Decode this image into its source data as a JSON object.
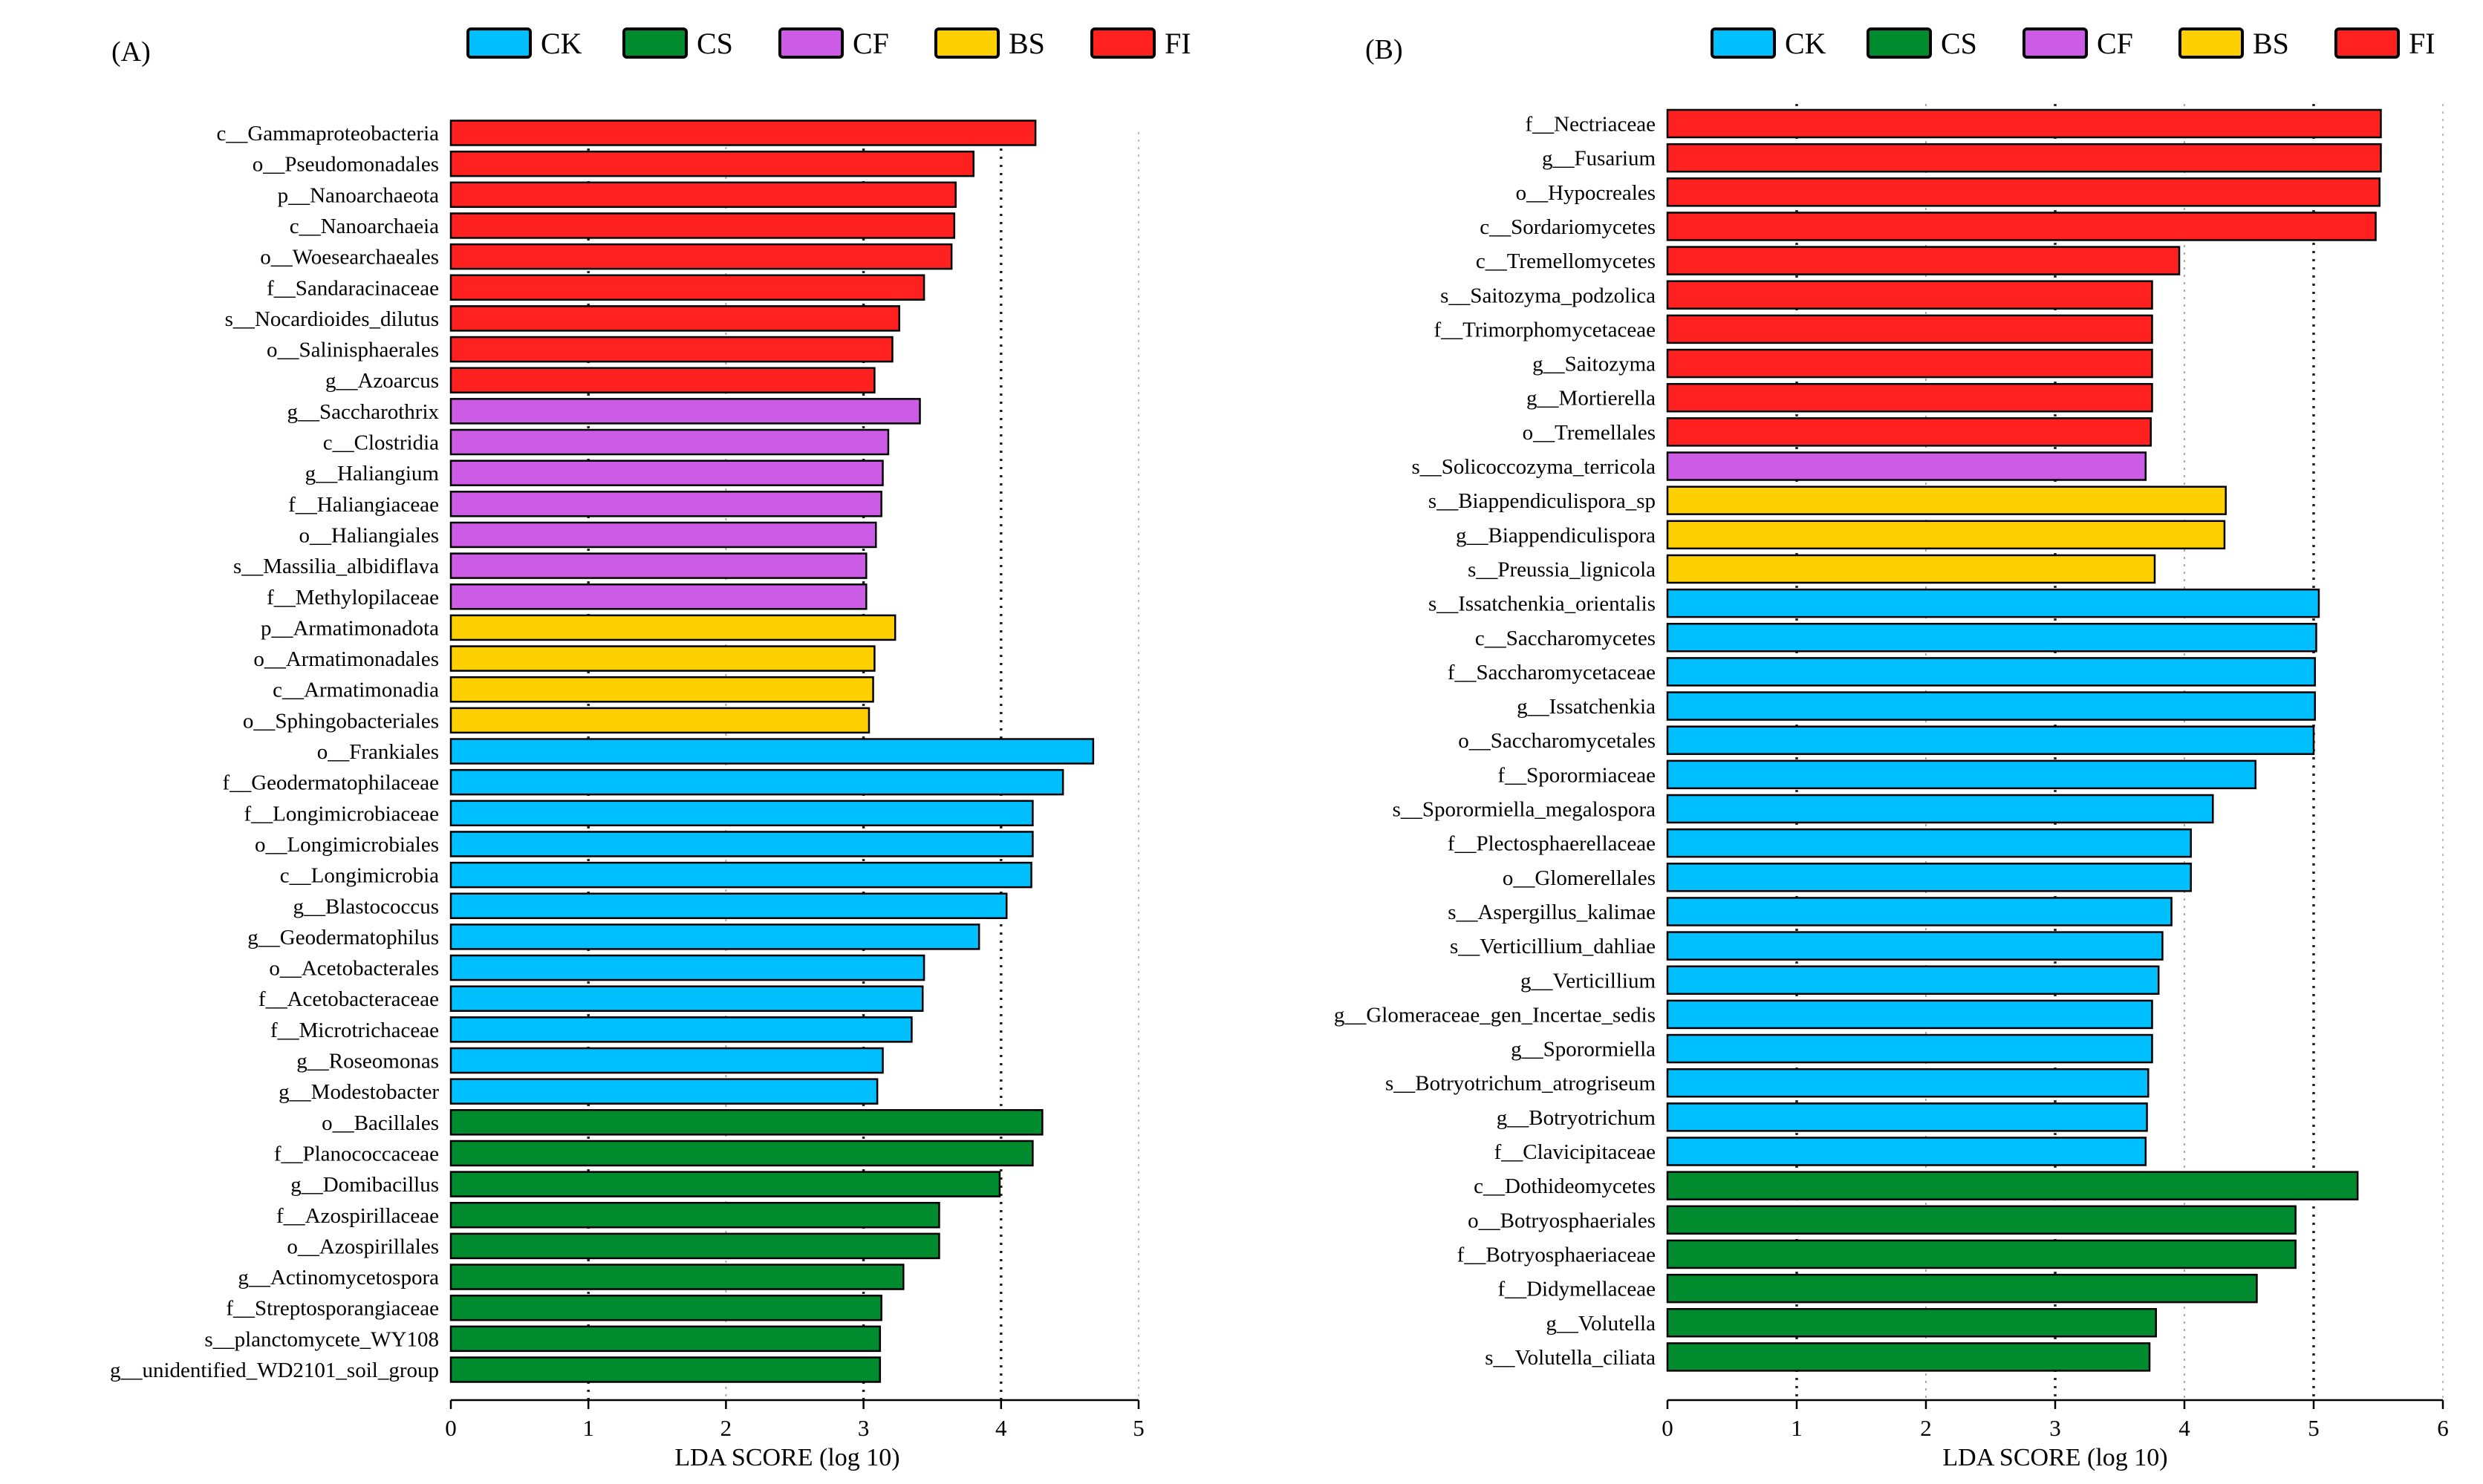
{
  "colors": {
    "CK": "#00BFFF",
    "CS": "#008B2E",
    "CF": "#CC5CE6",
    "BS": "#FFD000",
    "FI": "#FF2020"
  },
  "chart_data": [
    {
      "type": "bar",
      "orientation": "horizontal",
      "panel_label": "(A)",
      "xlabel": "LDA SCORE (log 10)",
      "xlim": [
        0,
        5
      ],
      "xticks": [
        "0",
        "1",
        "2",
        "3",
        "4",
        "5"
      ],
      "legend": [
        "CK",
        "CS",
        "CF",
        "BS",
        "FI"
      ],
      "legend_position": "top",
      "bars": [
        {
          "label": "c__Gammaproteobacteria",
          "value": 4.25,
          "group": "FI"
        },
        {
          "label": "o__Pseudomonadales",
          "value": 3.8,
          "group": "FI"
        },
        {
          "label": "p__Nanoarchaeota",
          "value": 3.67,
          "group": "FI"
        },
        {
          "label": "c__Nanoarchaeia",
          "value": 3.66,
          "group": "FI"
        },
        {
          "label": "o__Woesearchaeales",
          "value": 3.64,
          "group": "FI"
        },
        {
          "label": "f__Sandaracinaceae",
          "value": 3.44,
          "group": "FI"
        },
        {
          "label": "s__Nocardioides_dilutus",
          "value": 3.26,
          "group": "FI"
        },
        {
          "label": "o__Salinisphaerales",
          "value": 3.21,
          "group": "FI"
        },
        {
          "label": "g__Azoarcus",
          "value": 3.08,
          "group": "FI"
        },
        {
          "label": "g__Saccharothrix",
          "value": 3.41,
          "group": "CF"
        },
        {
          "label": "c__Clostridia",
          "value": 3.18,
          "group": "CF"
        },
        {
          "label": "g__Haliangium",
          "value": 3.14,
          "group": "CF"
        },
        {
          "label": "f__Haliangiaceae",
          "value": 3.13,
          "group": "CF"
        },
        {
          "label": "o__Haliangiales",
          "value": 3.09,
          "group": "CF"
        },
        {
          "label": "s__Massilia_albidiflava",
          "value": 3.02,
          "group": "CF"
        },
        {
          "label": "f__Methylopilaceae",
          "value": 3.02,
          "group": "CF"
        },
        {
          "label": "p__Armatimonadota",
          "value": 3.23,
          "group": "BS"
        },
        {
          "label": "o__Armatimonadales",
          "value": 3.08,
          "group": "BS"
        },
        {
          "label": "c__Armatimonadia",
          "value": 3.07,
          "group": "BS"
        },
        {
          "label": "o__Sphingobacteriales",
          "value": 3.04,
          "group": "BS"
        },
        {
          "label": "o__Frankiales",
          "value": 4.67,
          "group": "CK"
        },
        {
          "label": "f__Geodermatophilaceae",
          "value": 4.45,
          "group": "CK"
        },
        {
          "label": "f__Longimicrobiaceae",
          "value": 4.23,
          "group": "CK"
        },
        {
          "label": "o__Longimicrobiales",
          "value": 4.23,
          "group": "CK"
        },
        {
          "label": "c__Longimicrobia",
          "value": 4.22,
          "group": "CK"
        },
        {
          "label": "g__Blastococcus",
          "value": 4.04,
          "group": "CK"
        },
        {
          "label": "g__Geodermatophilus",
          "value": 3.84,
          "group": "CK"
        },
        {
          "label": "o__Acetobacterales",
          "value": 3.44,
          "group": "CK"
        },
        {
          "label": "f__Acetobacteraceae",
          "value": 3.43,
          "group": "CK"
        },
        {
          "label": "f__Microtrichaceae",
          "value": 3.35,
          "group": "CK"
        },
        {
          "label": "g__Roseomonas",
          "value": 3.14,
          "group": "CK"
        },
        {
          "label": "g__Modestobacter",
          "value": 3.1,
          "group": "CK"
        },
        {
          "label": "o__Bacillales",
          "value": 4.3,
          "group": "CS"
        },
        {
          "label": "f__Planococcaceae",
          "value": 4.23,
          "group": "CS"
        },
        {
          "label": "g__Domibacillus",
          "value": 3.99,
          "group": "CS"
        },
        {
          "label": "f__Azospirillaceae",
          "value": 3.55,
          "group": "CS"
        },
        {
          "label": "o__Azospirillales",
          "value": 3.55,
          "group": "CS"
        },
        {
          "label": "g__Actinomycetospora",
          "value": 3.29,
          "group": "CS"
        },
        {
          "label": "f__Streptosporangiaceae",
          "value": 3.13,
          "group": "CS"
        },
        {
          "label": "s__planctomycete_WY108",
          "value": 3.12,
          "group": "CS"
        },
        {
          "label": "g__unidentified_WD2101_soil_group",
          "value": 3.12,
          "group": "CS"
        }
      ]
    },
    {
      "type": "bar",
      "orientation": "horizontal",
      "panel_label": "(B)",
      "xlabel": "LDA SCORE (log 10)",
      "xlim": [
        0,
        6
      ],
      "xticks": [
        "0",
        "1",
        "2",
        "3",
        "4",
        "5",
        "6"
      ],
      "legend": [
        "CK",
        "CS",
        "CF",
        "BS",
        "FI"
      ],
      "legend_position": "top",
      "bars": [
        {
          "label": "f__Nectriaceae",
          "value": 5.52,
          "group": "FI"
        },
        {
          "label": "g__Fusarium",
          "value": 5.52,
          "group": "FI"
        },
        {
          "label": "o__Hypocreales",
          "value": 5.51,
          "group": "FI"
        },
        {
          "label": "c__Sordariomycetes",
          "value": 5.48,
          "group": "FI"
        },
        {
          "label": "c__Tremellomycetes",
          "value": 3.96,
          "group": "FI"
        },
        {
          "label": "s__Saitozyma_podzolica",
          "value": 3.75,
          "group": "FI"
        },
        {
          "label": "f__Trimorphomycetaceae",
          "value": 3.75,
          "group": "FI"
        },
        {
          "label": "g__Saitozyma",
          "value": 3.75,
          "group": "FI"
        },
        {
          "label": "g__Mortierella",
          "value": 3.75,
          "group": "FI"
        },
        {
          "label": "o__Tremellales",
          "value": 3.74,
          "group": "FI"
        },
        {
          "label": "s__Solicoccozyma_terricola",
          "value": 3.7,
          "group": "CF"
        },
        {
          "label": "s__Biappendiculispora_sp",
          "value": 4.32,
          "group": "BS"
        },
        {
          "label": "g__Biappendiculispora",
          "value": 4.31,
          "group": "BS"
        },
        {
          "label": "s__Preussia_lignicola",
          "value": 3.77,
          "group": "BS"
        },
        {
          "label": "s__Issatchenkia_orientalis",
          "value": 5.04,
          "group": "CK"
        },
        {
          "label": "c__Saccharomycetes",
          "value": 5.02,
          "group": "CK"
        },
        {
          "label": "f__Saccharomycetaceae",
          "value": 5.01,
          "group": "CK"
        },
        {
          "label": "g__Issatchenkia",
          "value": 5.01,
          "group": "CK"
        },
        {
          "label": "o__Saccharomycetales",
          "value": 5.0,
          "group": "CK"
        },
        {
          "label": "f__Sporormiaceae",
          "value": 4.55,
          "group": "CK"
        },
        {
          "label": "s__Sporormiella_megalospora",
          "value": 4.22,
          "group": "CK"
        },
        {
          "label": "f__Plectosphaerellaceae",
          "value": 4.05,
          "group": "CK"
        },
        {
          "label": "o__Glomerellales",
          "value": 4.05,
          "group": "CK"
        },
        {
          "label": "s__Aspergillus_kalimae",
          "value": 3.9,
          "group": "CK"
        },
        {
          "label": "s__Verticillium_dahliae",
          "value": 3.83,
          "group": "CK"
        },
        {
          "label": "g__Verticillium",
          "value": 3.8,
          "group": "CK"
        },
        {
          "label": "g__Glomeraceae_gen_Incertae_sedis",
          "value": 3.75,
          "group": "CK"
        },
        {
          "label": "g__Sporormiella",
          "value": 3.75,
          "group": "CK"
        },
        {
          "label": "s__Botryotrichum_atrogriseum",
          "value": 3.72,
          "group": "CK"
        },
        {
          "label": "g__Botryotrichum",
          "value": 3.71,
          "group": "CK"
        },
        {
          "label": "f__Clavicipitaceae",
          "value": 3.7,
          "group": "CK"
        },
        {
          "label": "c__Dothideomycetes",
          "value": 5.34,
          "group": "CS"
        },
        {
          "label": "o__Botryosphaeriales",
          "value": 4.86,
          "group": "CS"
        },
        {
          "label": "f__Botryosphaeriaceae",
          "value": 4.86,
          "group": "CS"
        },
        {
          "label": "f__Didymellaceae",
          "value": 4.56,
          "group": "CS"
        },
        {
          "label": "g__Volutella",
          "value": 3.78,
          "group": "CS"
        },
        {
          "label": "s__Volutella_ciliata",
          "value": 3.73,
          "group": "CS"
        }
      ]
    }
  ]
}
